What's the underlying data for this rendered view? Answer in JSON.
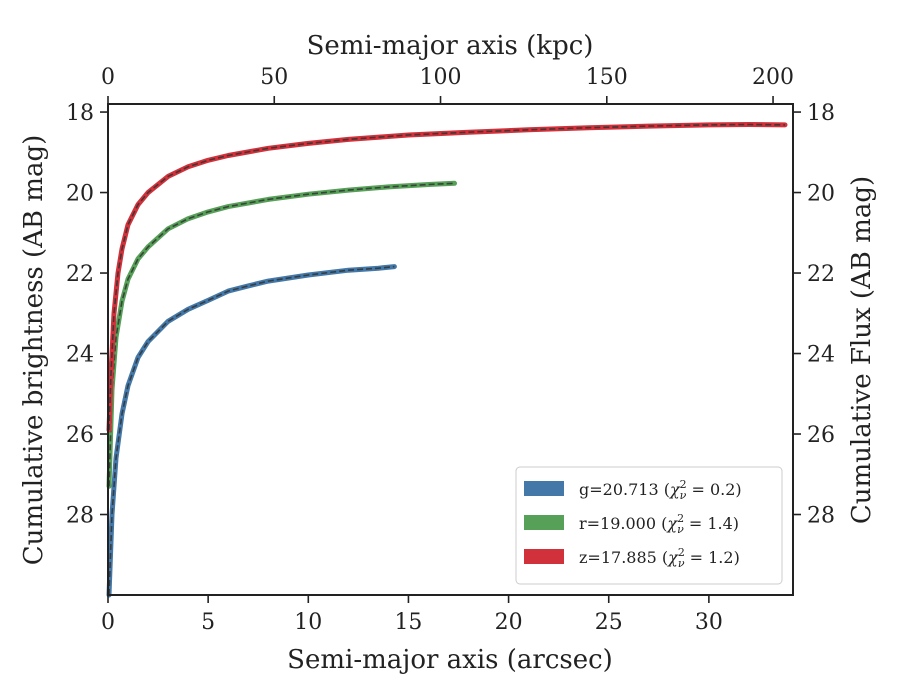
{
  "chart_data": {
    "type": "line",
    "title": "",
    "xlabel": "Semi-major axis (arcsec)",
    "x2label": "Semi-major axis (kpc)",
    "ylabel": "Cumulative brightness (AB mag)",
    "y2label": "Cumulative Flux (AB mag)",
    "xlim": [
      0,
      34.2
    ],
    "x2lim": [
      0,
      206
    ],
    "ylim": [
      30.0,
      17.8
    ],
    "y_inverted": true,
    "xticks": [
      "0",
      "5",
      "10",
      "15",
      "20",
      "25",
      "30"
    ],
    "x2ticks": [
      "0",
      "50",
      "100",
      "150",
      "200"
    ],
    "yticks": [
      "18",
      "20",
      "22",
      "24",
      "26",
      "28"
    ],
    "y2ticks": [
      "18",
      "20",
      "22",
      "24",
      "26",
      "28"
    ],
    "grid": false,
    "legend_position": "lower-right",
    "series": [
      {
        "name": "g=20.713 (χ²ᵥ = 0.2)",
        "label_main": "g=20.713 (",
        "label_sym": "χ",
        "label_sup": "2",
        "label_sub": "ν",
        "label_val": " = 0.2)",
        "color": "#4378a8",
        "x": [
          0.05,
          0.2,
          0.4,
          0.7,
          1.0,
          1.5,
          2.0,
          3.0,
          4.0,
          5.0,
          6.0,
          7.0,
          8.0,
          10.0,
          12.0,
          13.5,
          14.3
        ],
        "y": [
          30.0,
          28.0,
          26.6,
          25.5,
          24.8,
          24.1,
          23.7,
          23.2,
          22.9,
          22.68,
          22.45,
          22.32,
          22.2,
          22.05,
          21.93,
          21.88,
          21.84
        ]
      },
      {
        "name": "r=19.000 (χ²ᵥ = 1.4)",
        "label_main": "r=19.000 (",
        "label_sym": "χ",
        "label_sup": "2",
        "label_sub": "ν",
        "label_val": " = 1.4)",
        "color": "#56a058",
        "x": [
          0.05,
          0.2,
          0.4,
          0.7,
          1.0,
          1.5,
          2.0,
          3.0,
          4.0,
          5.0,
          6.0,
          8.0,
          10.0,
          12.0,
          14.0,
          16.0,
          17.3
        ],
        "y": [
          27.3,
          24.9,
          23.6,
          22.7,
          22.15,
          21.65,
          21.35,
          20.9,
          20.65,
          20.48,
          20.35,
          20.17,
          20.04,
          19.94,
          19.86,
          19.8,
          19.77
        ]
      },
      {
        "name": "z=17.885 (χ²ᵥ = 1.2)",
        "label_main": "z=17.885 (",
        "label_sym": "χ",
        "label_sup": "2",
        "label_sub": "ν",
        "label_val": " = 1.2)",
        "color": "#d0313a",
        "x": [
          0.05,
          0.15,
          0.3,
          0.5,
          0.7,
          1.0,
          1.5,
          2.0,
          3.0,
          4.0,
          5.0,
          6.0,
          8.0,
          10.0,
          12.0,
          15.0,
          18.0,
          21.0,
          24.0,
          27.0,
          30.0,
          32.0,
          33.8
        ],
        "y": [
          25.9,
          24.5,
          23.0,
          22.0,
          21.4,
          20.8,
          20.3,
          20.0,
          19.6,
          19.36,
          19.2,
          19.08,
          18.9,
          18.78,
          18.68,
          18.57,
          18.5,
          18.44,
          18.39,
          18.35,
          18.32,
          18.31,
          18.32
        ]
      }
    ],
    "model_style": "dashed-dark"
  }
}
